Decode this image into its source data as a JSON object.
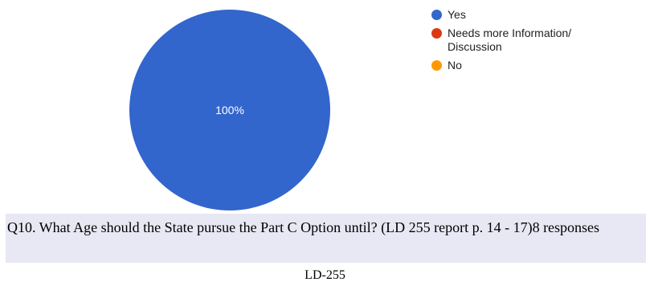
{
  "chart_data": {
    "type": "pie",
    "categories": [
      "Yes",
      "Needs more Information/ Discussion",
      "No"
    ],
    "values": [
      100,
      0,
      0
    ],
    "colors": [
      "#3366cc",
      "#dc3912",
      "#ff9900"
    ],
    "slice_labels": [
      "100%",
      "",
      ""
    ],
    "legend_position": "right",
    "title": ""
  },
  "legend": {
    "items": [
      {
        "label": "Yes",
        "color": "#3366cc"
      },
      {
        "label": "Needs more Information/ Discussion",
        "color": "#dc3912"
      },
      {
        "label": "No",
        "color": "#ff9900"
      }
    ]
  },
  "question": {
    "text": "Q10. What Age should the State pursue the Part C Option until? (LD 255 report p. 14 - 17)8 responses"
  },
  "footer": {
    "label": "LD-255"
  },
  "colors": {
    "question_band": "#e8e8f4"
  }
}
